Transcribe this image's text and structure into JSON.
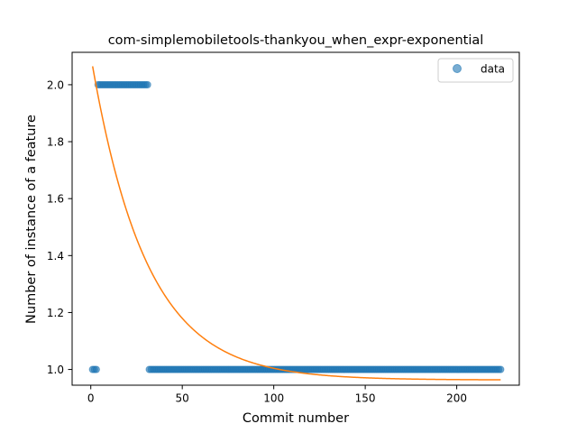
{
  "chart_data": {
    "type": "scatter",
    "title": "com-simplemobiletools-thankyou_when_expr-exponential",
    "xlabel": "Commit number",
    "ylabel": "Number of instance of a feature",
    "xlim": [
      -10.2,
      234.2
    ],
    "ylim": [
      0.9448,
      2.1138
    ],
    "x_ticks": [
      0,
      50,
      100,
      150,
      200
    ],
    "y_ticks": [
      1.0,
      1.2,
      1.4,
      1.6,
      1.8,
      2.0
    ],
    "y_tick_labels": [
      "1.0",
      "1.2",
      "1.4",
      "1.6",
      "1.8",
      "2.0"
    ],
    "legend": {
      "position": "top-right",
      "entries": [
        "data"
      ]
    },
    "grid": false,
    "series": [
      {
        "name": "data",
        "kind": "scatter",
        "color": "#1f77b4",
        "segments": [
          {
            "x_start": 1,
            "x_end": 3,
            "y": 1.0
          },
          {
            "x_start": 4,
            "x_end": 31,
            "y": 2.0
          },
          {
            "x_start": 32,
            "x_end": 224,
            "y": 1.0
          }
        ]
      },
      {
        "kind": "line",
        "color": "#ff7f0e",
        "model": {
          "form": "a*exp(-b*x)+c",
          "a": 1.139,
          "b": 0.0332,
          "c": 0.963,
          "x_start": 1,
          "x_end": 224
        }
      }
    ]
  }
}
